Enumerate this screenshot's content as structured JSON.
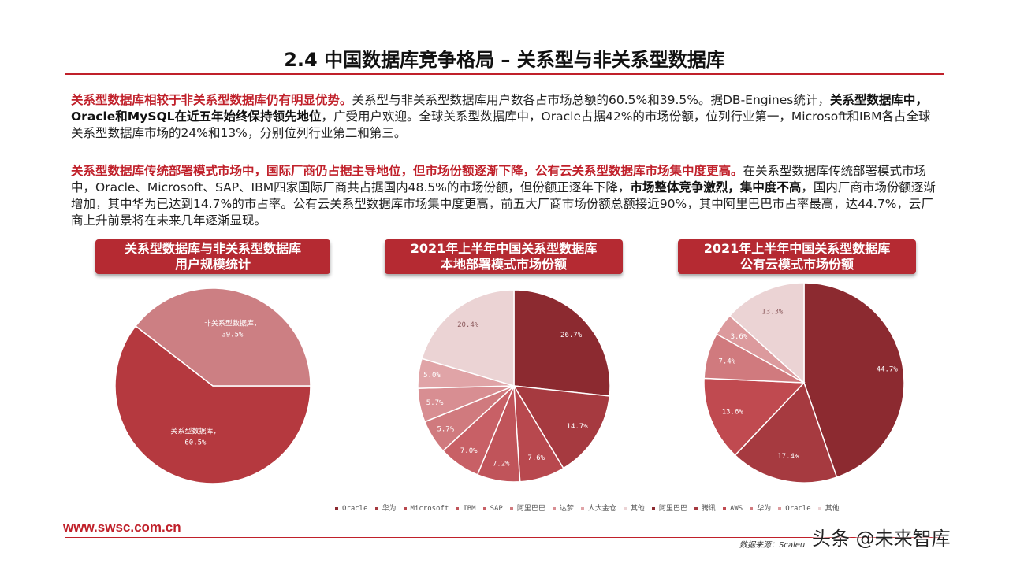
{
  "title": "2.4 中国数据库竞争格局 – 关系型与非关系型数据库",
  "para1": {
    "s1": "关系型数据库相较于非关系型数据库仍有明显优势。",
    "s2": "关系型与非关系型数据库用户数各占市场总额的60.5%和39.5%。据DB-Engines统计，",
    "s3": "关系型数据库中，Oracle和MySQL在近五年始终保持领先地位",
    "s4": "，广受用户欢迎。全球关系型数据库中，Oracle占据42%的市场份额，位列行业第一，Microsoft和IBM各占全球关系型数据库市场的24%和13%，分别位列行业第二和第三。"
  },
  "para2": {
    "s1": "关系型数据库传统部署模式市场中，国际厂商仍占据主导地位，但市场份额逐渐下降，公有云关系型数据库市场集中度更高。",
    "s2": "在关系型数据库传统部署模式市场中，Oracle、Microsoft、SAP、IBM四家国际厂商共占据国内48.5%的市场份额，但份额正逐年下降，",
    "s3": "市场整体竞争激烈，集中度不高",
    "s4": "，国内厂商市场份额逐渐增加，其中华为已达到14.7%的市占率。公有云关系型数据库市场集中度更高，前五大厂商市场份额总额接近90%，其中阿里巴巴市占率最高，达44.7%，云厂商上升前景将在未来几年逐渐显现。"
  },
  "chart_titles": [
    [
      "关系型数据库与非关系型数据库",
      "用户规模统计"
    ],
    [
      "2021年上半年中国关系型数据库",
      "本地部署模式市场份额"
    ],
    [
      "2021年上半年中国关系型数据库",
      "公有云模式市场份额"
    ]
  ],
  "chart_data": [
    {
      "type": "pie",
      "title": "关系型数据库与非关系型数据库用户规模统计",
      "labels": [
        "关系型数据库",
        "非关系型数据库"
      ],
      "values": [
        60.5,
        39.5
      ],
      "value_labels": [
        "60.5%",
        "39.5%"
      ],
      "colors": [
        "#b5393f",
        "#cc7f83"
      ]
    },
    {
      "type": "pie",
      "title": "2021年上半年中国关系型数据库本地部署模式市场份额",
      "labels": [
        "Oracle",
        "华为",
        "Microsoft",
        "IBM",
        "SAP",
        "阿里巴巴",
        "达梦",
        "人大金仓",
        "其他"
      ],
      "values": [
        26.7,
        14.7,
        7.6,
        7.2,
        7.0,
        5.7,
        5.7,
        5.0,
        20.4
      ],
      "value_labels": [
        "26.7%",
        "14.7%",
        "7.6%",
        "7.2%",
        "7.0%",
        "5.7%",
        "5.7%",
        "5.0%",
        "20.4%"
      ],
      "colors": [
        "#8c2a30",
        "#a63a40",
        "#b8484e",
        "#c0545a",
        "#c86066",
        "#d07a7e",
        "#d88e92",
        "#e0a4a7",
        "#ebd3d4"
      ]
    },
    {
      "type": "pie",
      "title": "2021年上半年中国关系型数据库公有云模式市场份额",
      "labels": [
        "阿里巴巴",
        "腾讯",
        "AWS",
        "华为",
        "Oracle",
        "其他"
      ],
      "values": [
        44.7,
        17.4,
        13.6,
        7.4,
        3.6,
        13.3
      ],
      "value_labels": [
        "44.7%",
        "17.4%",
        "13.6%",
        "7.4%",
        "3.6%",
        "13.3%"
      ],
      "colors": [
        "#8c2a30",
        "#a63a40",
        "#c04a50",
        "#d07a7e",
        "#dc9a9d",
        "#ebd3d4"
      ]
    }
  ],
  "legend": [
    {
      "label": "Oracle",
      "color": "#8c2a30"
    },
    {
      "label": "华为",
      "color": "#a63a40"
    },
    {
      "label": "Microsoft",
      "color": "#b8484e"
    },
    {
      "label": "IBM",
      "color": "#c0545a"
    },
    {
      "label": "SAP",
      "color": "#c86066"
    },
    {
      "label": "阿里巴巴",
      "color": "#d07a7e"
    },
    {
      "label": "达梦",
      "color": "#d88e92"
    },
    {
      "label": "人大金仓",
      "color": "#e0a4a7"
    },
    {
      "label": "其他",
      "color": "#ebd3d4"
    },
    {
      "label": "阿里巴巴",
      "color": "#8c2a30"
    },
    {
      "label": "腾讯",
      "color": "#a63a40"
    },
    {
      "label": "AWS",
      "color": "#c04a50"
    },
    {
      "label": "华为",
      "color": "#d07a7e"
    },
    {
      "label": "Oracle",
      "color": "#dc9a9d"
    },
    {
      "label": "其他",
      "color": "#ebd3d4"
    }
  ],
  "footer": {
    "site": "www.swsc.com.cn",
    "source": "数据来源：Scaleu",
    "watermark": "头条 @未来智库"
  }
}
